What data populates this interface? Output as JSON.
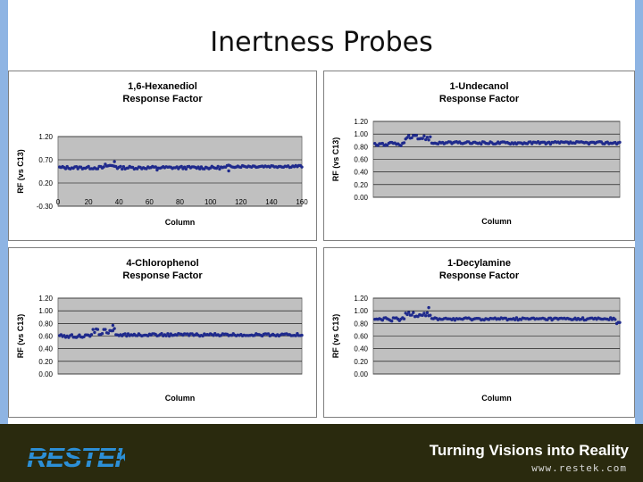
{
  "slide": {
    "title": "Inertness Probes"
  },
  "footer": {
    "brand": "RESTEK",
    "tagline": "Turning Visions into Reality",
    "url": "www.restek.com"
  },
  "colors": {
    "marker": "#1f2a8c",
    "plot_area": "#c0c0c0",
    "footer_bg": "#2a2a0e",
    "side_band": "#8eb4e3"
  },
  "chart_data": [
    {
      "type": "scatter",
      "title": "1,6-Hexanediol",
      "subtitle": "Response Factor",
      "xlabel": "Column",
      "ylabel": "RF (vs C13)",
      "ylim": [
        -0.3,
        1.2
      ],
      "yticks": [
        "1.20",
        "0.70",
        "0.20",
        "-0.30"
      ],
      "xlim": [
        0,
        160
      ],
      "xticks": [
        "0",
        "20",
        "40",
        "60",
        "80",
        "100",
        "120",
        "140",
        "160"
      ],
      "grid": true,
      "legend": "none",
      "segments": [
        {
          "x": [
            1,
            30
          ],
          "y": 0.53,
          "jitter": 0.03
        },
        {
          "x": [
            31,
            38
          ],
          "y": 0.57,
          "jitter": 0.04,
          "spike": {
            "x": 37,
            "y": 0.66
          }
        },
        {
          "x": [
            39,
            110
          ],
          "y": 0.53,
          "jitter": 0.03,
          "low": [
            {
              "x": 65,
              "y": 0.48
            },
            {
              "x": 112,
              "y": 0.46
            }
          ]
        },
        {
          "x": [
            111,
            160
          ],
          "y": 0.56,
          "jitter": 0.025
        }
      ]
    },
    {
      "type": "scatter",
      "title": "1-Undecanol",
      "subtitle": "Response Factor",
      "xlabel": "Column",
      "ylabel": "RF (vs C13)",
      "ylim": [
        0.0,
        1.2
      ],
      "yticks": [
        "1.20",
        "1.00",
        "0.80",
        "0.60",
        "0.40",
        "0.20",
        "0.00"
      ],
      "xlim": [
        0,
        160
      ],
      "xticks": [],
      "grid": true,
      "legend": "none",
      "segments": [
        {
          "x": [
            1,
            20
          ],
          "y": 0.84,
          "jitter": 0.03
        },
        {
          "x": [
            21,
            37
          ],
          "y": 0.94,
          "jitter": 0.04
        },
        {
          "x": [
            38,
            160
          ],
          "y": 0.86,
          "jitter": 0.02
        }
      ]
    },
    {
      "type": "scatter",
      "title": "4-Chlorophenol",
      "subtitle": "Response Factor",
      "xlabel": "Column",
      "ylabel": "RF (vs C13)",
      "ylim": [
        0.0,
        1.2
      ],
      "yticks": [
        "1.20",
        "1.00",
        "0.80",
        "0.60",
        "0.40",
        "0.20",
        "0.00"
      ],
      "xlim": [
        0,
        160
      ],
      "xticks": [],
      "grid": true,
      "legend": "none",
      "segments": [
        {
          "x": [
            1,
            22
          ],
          "y": 0.6,
          "jitter": 0.025
        },
        {
          "x": [
            23,
            37
          ],
          "y": 0.67,
          "jitter": 0.05,
          "spike": {
            "x": 36,
            "y": 0.77
          }
        },
        {
          "x": [
            38,
            160
          ],
          "y": 0.62,
          "jitter": 0.02
        }
      ]
    },
    {
      "type": "scatter",
      "title": "1-Decylamine",
      "subtitle": "Response Factor",
      "xlabel": "Column",
      "ylabel": "RF (vs C13)",
      "ylim": [
        0.0,
        1.2
      ],
      "yticks": [
        "1.20",
        "1.00",
        "0.80",
        "0.60",
        "0.40",
        "0.20",
        "0.00"
      ],
      "xlim": [
        0,
        160
      ],
      "xticks": [],
      "grid": true,
      "legend": "none",
      "segments": [
        {
          "x": [
            1,
            20
          ],
          "y": 0.86,
          "jitter": 0.03
        },
        {
          "x": [
            21,
            37
          ],
          "y": 0.95,
          "jitter": 0.05,
          "spike": {
            "x": 36,
            "y": 1.05
          }
        },
        {
          "x": [
            38,
            157
          ],
          "y": 0.87,
          "jitter": 0.02
        },
        {
          "x": [
            158,
            160
          ],
          "y": 0.8,
          "jitter": 0.02
        }
      ]
    }
  ]
}
